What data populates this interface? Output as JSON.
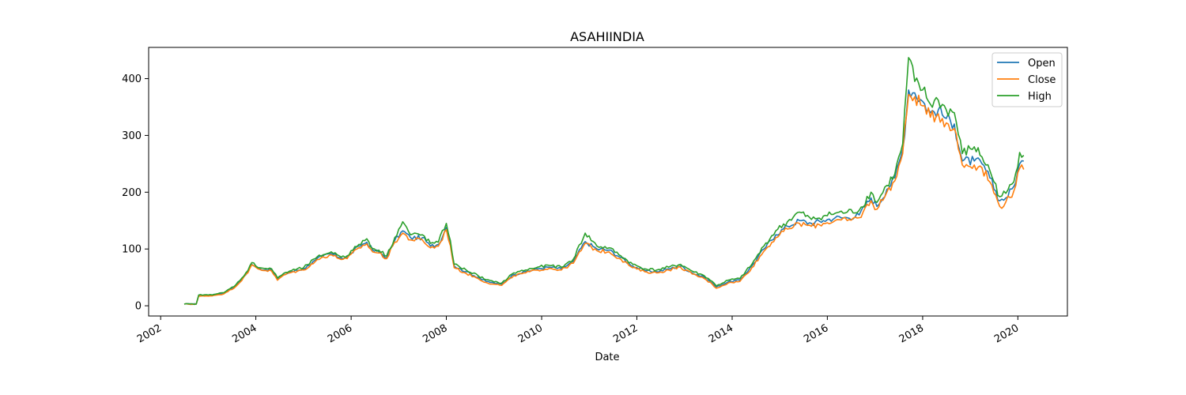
{
  "chart_data": {
    "type": "line",
    "title": "ASAHIINDIA",
    "xlabel": "Date",
    "ylabel": "",
    "xlim": [
      "2001-10-01",
      "2021-01-15"
    ],
    "ylim": [
      -18,
      455
    ],
    "x_ticks": [
      "2002",
      "2004",
      "2006",
      "2008",
      "2010",
      "2012",
      "2014",
      "2016",
      "2018",
      "2020"
    ],
    "y_ticks": [
      0,
      100,
      200,
      300,
      400
    ],
    "legend": {
      "position": "top-right"
    },
    "grid": false,
    "series": [
      {
        "name": "Open",
        "color": "#1f77b4",
        "points": [
          [
            "2002-07-01",
            3
          ],
          [
            "2002-10-01",
            3
          ],
          [
            "2002-10-20",
            18
          ],
          [
            "2003-01-01",
            18
          ],
          [
            "2003-05-01",
            22
          ],
          [
            "2003-08-01",
            35
          ],
          [
            "2003-11-01",
            60
          ],
          [
            "2003-12-01",
            73
          ],
          [
            "2004-02-01",
            65
          ],
          [
            "2004-05-01",
            63
          ],
          [
            "2004-06-15",
            47
          ],
          [
            "2004-08-01",
            55
          ],
          [
            "2004-10-01",
            60
          ],
          [
            "2005-01-01",
            65
          ],
          [
            "2005-04-01",
            80
          ],
          [
            "2005-06-01",
            88
          ],
          [
            "2005-08-01",
            92
          ],
          [
            "2005-10-01",
            85
          ],
          [
            "2005-12-01",
            85
          ],
          [
            "2006-03-01",
            105
          ],
          [
            "2006-05-01",
            112
          ],
          [
            "2006-06-15",
            98
          ],
          [
            "2006-08-01",
            95
          ],
          [
            "2006-10-01",
            85
          ],
          [
            "2006-12-01",
            115
          ],
          [
            "2007-02-01",
            132
          ],
          [
            "2007-04-01",
            120
          ],
          [
            "2007-07-01",
            120
          ],
          [
            "2007-09-01",
            105
          ],
          [
            "2007-11-01",
            108
          ],
          [
            "2008-01-01",
            138
          ],
          [
            "2008-02-01",
            110
          ],
          [
            "2008-03-01",
            70
          ],
          [
            "2008-06-01",
            60
          ],
          [
            "2008-09-01",
            50
          ],
          [
            "2008-11-01",
            43
          ],
          [
            "2009-01-01",
            40
          ],
          [
            "2009-03-01",
            38
          ],
          [
            "2009-06-01",
            55
          ],
          [
            "2009-09-01",
            60
          ],
          [
            "2009-12-01",
            65
          ],
          [
            "2010-03-01",
            68
          ],
          [
            "2010-06-01",
            65
          ],
          [
            "2010-09-01",
            78
          ],
          [
            "2010-12-01",
            113
          ],
          [
            "2011-03-01",
            100
          ],
          [
            "2011-06-01",
            98
          ],
          [
            "2011-09-01",
            85
          ],
          [
            "2011-12-01",
            70
          ],
          [
            "2012-03-01",
            62
          ],
          [
            "2012-06-01",
            60
          ],
          [
            "2012-09-01",
            65
          ],
          [
            "2012-12-01",
            70
          ],
          [
            "2013-03-01",
            58
          ],
          [
            "2013-06-01",
            50
          ],
          [
            "2013-08-01",
            40
          ],
          [
            "2013-09-01",
            33
          ],
          [
            "2013-12-01",
            42
          ],
          [
            "2014-03-01",
            45
          ],
          [
            "2014-06-01",
            70
          ],
          [
            "2014-09-01",
            100
          ],
          [
            "2014-12-01",
            125
          ],
          [
            "2015-03-01",
            140
          ],
          [
            "2015-06-01",
            150
          ],
          [
            "2015-09-01",
            145
          ],
          [
            "2015-12-01",
            150
          ],
          [
            "2016-03-01",
            155
          ],
          [
            "2016-06-01",
            155
          ],
          [
            "2016-09-01",
            160
          ],
          [
            "2016-12-01",
            190
          ],
          [
            "2017-01-15",
            175
          ],
          [
            "2017-04-01",
            205
          ],
          [
            "2017-06-01",
            225
          ],
          [
            "2017-08-01",
            275
          ],
          [
            "2017-09-15",
            380
          ],
          [
            "2017-11-01",
            375
          ],
          [
            "2018-01-01",
            360
          ],
          [
            "2018-03-01",
            340
          ],
          [
            "2018-05-01",
            345
          ],
          [
            "2018-07-01",
            330
          ],
          [
            "2018-09-01",
            320
          ],
          [
            "2018-11-01",
            255
          ],
          [
            "2019-02-01",
            255
          ],
          [
            "2019-04-01",
            250
          ],
          [
            "2019-06-01",
            225
          ],
          [
            "2019-08-15",
            185
          ],
          [
            "2019-10-01",
            190
          ],
          [
            "2019-12-01",
            210
          ],
          [
            "2020-01-15",
            250
          ],
          [
            "2020-02-15",
            255
          ]
        ]
      },
      {
        "name": "Close",
        "color": "#ff7f0e",
        "points": [
          [
            "2002-07-01",
            3
          ],
          [
            "2002-10-01",
            3
          ],
          [
            "2002-10-20",
            17
          ],
          [
            "2003-01-01",
            17
          ],
          [
            "2003-05-01",
            21
          ],
          [
            "2003-08-01",
            34
          ],
          [
            "2003-11-01",
            58
          ],
          [
            "2003-12-01",
            72
          ],
          [
            "2004-02-01",
            64
          ],
          [
            "2004-05-01",
            61
          ],
          [
            "2004-06-15",
            45
          ],
          [
            "2004-08-01",
            54
          ],
          [
            "2004-10-01",
            59
          ],
          [
            "2005-01-01",
            63
          ],
          [
            "2005-04-01",
            78
          ],
          [
            "2005-06-01",
            86
          ],
          [
            "2005-08-01",
            90
          ],
          [
            "2005-10-01",
            83
          ],
          [
            "2005-12-01",
            83
          ],
          [
            "2006-03-01",
            102
          ],
          [
            "2006-05-01",
            109
          ],
          [
            "2006-06-15",
            95
          ],
          [
            "2006-08-01",
            93
          ],
          [
            "2006-10-01",
            83
          ],
          [
            "2006-12-01",
            112
          ],
          [
            "2007-02-01",
            128
          ],
          [
            "2007-04-01",
            116
          ],
          [
            "2007-07-01",
            116
          ],
          [
            "2007-09-01",
            102
          ],
          [
            "2007-11-01",
            105
          ],
          [
            "2008-01-01",
            134
          ],
          [
            "2008-02-01",
            106
          ],
          [
            "2008-03-01",
            67
          ],
          [
            "2008-06-01",
            57
          ],
          [
            "2008-09-01",
            48
          ],
          [
            "2008-11-01",
            41
          ],
          [
            "2009-01-01",
            38
          ],
          [
            "2009-03-01",
            36
          ],
          [
            "2009-06-01",
            53
          ],
          [
            "2009-09-01",
            58
          ],
          [
            "2009-12-01",
            63
          ],
          [
            "2010-03-01",
            66
          ],
          [
            "2010-06-01",
            63
          ],
          [
            "2010-09-01",
            75
          ],
          [
            "2010-12-01",
            110
          ],
          [
            "2011-03-01",
            97
          ],
          [
            "2011-06-01",
            95
          ],
          [
            "2011-09-01",
            82
          ],
          [
            "2011-12-01",
            67
          ],
          [
            "2012-03-01",
            60
          ],
          [
            "2012-06-01",
            58
          ],
          [
            "2012-09-01",
            63
          ],
          [
            "2012-12-01",
            68
          ],
          [
            "2013-03-01",
            56
          ],
          [
            "2013-06-01",
            48
          ],
          [
            "2013-08-01",
            38
          ],
          [
            "2013-09-01",
            31
          ],
          [
            "2013-12-01",
            40
          ],
          [
            "2014-03-01",
            43
          ],
          [
            "2014-06-01",
            67
          ],
          [
            "2014-09-01",
            96
          ],
          [
            "2014-12-01",
            120
          ],
          [
            "2015-03-01",
            135
          ],
          [
            "2015-06-01",
            145
          ],
          [
            "2015-09-01",
            140
          ],
          [
            "2015-12-01",
            145
          ],
          [
            "2016-03-01",
            150
          ],
          [
            "2016-06-01",
            150
          ],
          [
            "2016-09-01",
            155
          ],
          [
            "2016-12-01",
            185
          ],
          [
            "2017-01-15",
            170
          ],
          [
            "2017-04-01",
            200
          ],
          [
            "2017-06-01",
            220
          ],
          [
            "2017-08-01",
            268
          ],
          [
            "2017-09-15",
            372
          ],
          [
            "2017-11-01",
            368
          ],
          [
            "2018-01-01",
            352
          ],
          [
            "2018-03-01",
            332
          ],
          [
            "2018-05-01",
            338
          ],
          [
            "2018-07-01",
            322
          ],
          [
            "2018-09-01",
            312
          ],
          [
            "2018-11-01",
            248
          ],
          [
            "2019-02-01",
            248
          ],
          [
            "2019-04-01",
            243
          ],
          [
            "2019-06-01",
            218
          ],
          [
            "2019-08-15",
            175
          ],
          [
            "2019-10-01",
            183
          ],
          [
            "2019-12-01",
            202
          ],
          [
            "2020-01-15",
            242
          ],
          [
            "2020-02-15",
            240
          ]
        ]
      },
      {
        "name": "High",
        "color": "#2ca02c",
        "points": [
          [
            "2002-07-01",
            3
          ],
          [
            "2002-10-01",
            3
          ],
          [
            "2002-10-20",
            19
          ],
          [
            "2003-01-01",
            19
          ],
          [
            "2003-05-01",
            23
          ],
          [
            "2003-08-01",
            37
          ],
          [
            "2003-11-01",
            62
          ],
          [
            "2003-12-01",
            76
          ],
          [
            "2004-02-01",
            67
          ],
          [
            "2004-05-01",
            65
          ],
          [
            "2004-06-15",
            49
          ],
          [
            "2004-08-01",
            57
          ],
          [
            "2004-10-01",
            62
          ],
          [
            "2005-01-01",
            67
          ],
          [
            "2005-04-01",
            83
          ],
          [
            "2005-06-01",
            90
          ],
          [
            "2005-08-01",
            95
          ],
          [
            "2005-10-01",
            88
          ],
          [
            "2005-12-01",
            88
          ],
          [
            "2006-03-01",
            108
          ],
          [
            "2006-05-01",
            118
          ],
          [
            "2006-06-15",
            101
          ],
          [
            "2006-08-01",
            98
          ],
          [
            "2006-10-01",
            88
          ],
          [
            "2006-12-01",
            120
          ],
          [
            "2007-02-01",
            148
          ],
          [
            "2007-04-01",
            125
          ],
          [
            "2007-07-01",
            125
          ],
          [
            "2007-09-01",
            110
          ],
          [
            "2007-11-01",
            112
          ],
          [
            "2008-01-01",
            145
          ],
          [
            "2008-02-01",
            115
          ],
          [
            "2008-03-01",
            73
          ],
          [
            "2008-06-01",
            63
          ],
          [
            "2008-09-01",
            53
          ],
          [
            "2008-11-01",
            46
          ],
          [
            "2009-01-01",
            42
          ],
          [
            "2009-03-01",
            40
          ],
          [
            "2009-06-01",
            58
          ],
          [
            "2009-09-01",
            63
          ],
          [
            "2009-12-01",
            68
          ],
          [
            "2010-03-01",
            71
          ],
          [
            "2010-06-01",
            68
          ],
          [
            "2010-09-01",
            82
          ],
          [
            "2010-12-01",
            128
          ],
          [
            "2011-03-01",
            105
          ],
          [
            "2011-06-01",
            102
          ],
          [
            "2011-09-01",
            88
          ],
          [
            "2011-12-01",
            73
          ],
          [
            "2012-03-01",
            65
          ],
          [
            "2012-06-01",
            63
          ],
          [
            "2012-09-01",
            68
          ],
          [
            "2012-12-01",
            73
          ],
          [
            "2013-03-01",
            61
          ],
          [
            "2013-06-01",
            53
          ],
          [
            "2013-08-01",
            43
          ],
          [
            "2013-09-01",
            35
          ],
          [
            "2013-12-01",
            45
          ],
          [
            "2014-03-01",
            48
          ],
          [
            "2014-06-01",
            73
          ],
          [
            "2014-09-01",
            105
          ],
          [
            "2014-12-01",
            132
          ],
          [
            "2015-03-01",
            148
          ],
          [
            "2015-06-01",
            165
          ],
          [
            "2015-09-01",
            152
          ],
          [
            "2015-12-01",
            158
          ],
          [
            "2016-03-01",
            163
          ],
          [
            "2016-06-01",
            165
          ],
          [
            "2016-09-01",
            168
          ],
          [
            "2016-12-01",
            200
          ],
          [
            "2017-01-15",
            182
          ],
          [
            "2017-04-01",
            212
          ],
          [
            "2017-06-01",
            232
          ],
          [
            "2017-08-01",
            285
          ],
          [
            "2017-09-15",
            437
          ],
          [
            "2017-11-01",
            395
          ],
          [
            "2018-01-01",
            380
          ],
          [
            "2018-03-01",
            355
          ],
          [
            "2018-05-01",
            362
          ],
          [
            "2018-07-01",
            345
          ],
          [
            "2018-09-01",
            340
          ],
          [
            "2018-11-01",
            268
          ],
          [
            "2019-02-01",
            280
          ],
          [
            "2019-04-01",
            262
          ],
          [
            "2019-06-01",
            238
          ],
          [
            "2019-08-15",
            192
          ],
          [
            "2019-10-01",
            198
          ],
          [
            "2019-12-01",
            218
          ],
          [
            "2020-01-15",
            270
          ],
          [
            "2020-02-15",
            265
          ]
        ]
      }
    ]
  }
}
